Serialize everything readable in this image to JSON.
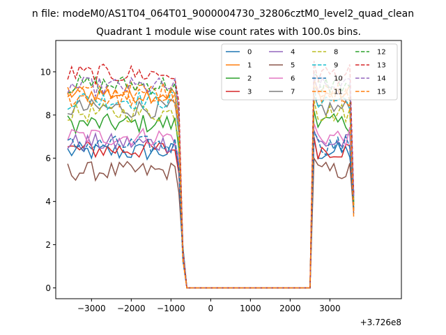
{
  "chart_data": {
    "type": "line",
    "suptitle": "n file: modeM0/AS1T04_064T01_9000004730_32806cztM0_level2_quad_clean",
    "title": "Quadrant 1 module wise count rates with 100.0s bins.",
    "xlabel": "",
    "ylabel": "",
    "offset_label": "+3.726e8",
    "xlim": [
      -3900,
      4800
    ],
    "ylim": [
      -0.5,
      11.45
    ],
    "x_ticks": [
      {
        "value": -3000,
        "label": "−3000"
      },
      {
        "value": -2000,
        "label": "−2000"
      },
      {
        "value": -1000,
        "label": "−1000"
      },
      {
        "value": 0,
        "label": "0"
      },
      {
        "value": 1000,
        "label": "1000"
      },
      {
        "value": 2000,
        "label": "2000"
      },
      {
        "value": 3000,
        "label": "3000"
      }
    ],
    "y_ticks": [
      {
        "value": 0,
        "label": "0"
      },
      {
        "value": 2,
        "label": "2"
      },
      {
        "value": 4,
        "label": "4"
      },
      {
        "value": 6,
        "label": "6"
      },
      {
        "value": 8,
        "label": "8"
      },
      {
        "value": 10,
        "label": "10"
      }
    ],
    "legend_position": "top-right",
    "grid": false,
    "series": [
      {
        "name": "0",
        "color": "#1f77b4",
        "dash": "solid",
        "base": 6.3
      },
      {
        "name": "1",
        "color": "#ff7f0e",
        "dash": "solid",
        "base": 9.0
      },
      {
        "name": "2",
        "color": "#2ca02c",
        "dash": "solid",
        "base": 7.6
      },
      {
        "name": "3",
        "color": "#d62728",
        "dash": "solid",
        "base": 6.4
      },
      {
        "name": "4",
        "color": "#9467bd",
        "dash": "solid",
        "base": 6.7
      },
      {
        "name": "5",
        "color": "#8c564b",
        "dash": "solid",
        "base": 5.4
      },
      {
        "name": "6",
        "color": "#e377c2",
        "dash": "solid",
        "base": 7.0
      },
      {
        "name": "7",
        "color": "#7f7f7f",
        "dash": "solid",
        "base": 8.3
      },
      {
        "name": "8",
        "color": "#bcbd22",
        "dash": "dashed",
        "base": 8.1
      },
      {
        "name": "9",
        "color": "#17becf",
        "dash": "dashed",
        "base": 8.7
      },
      {
        "name": "10",
        "color": "#1f77b4",
        "dash": "dashed",
        "base": 6.6
      },
      {
        "name": "11",
        "color": "#ff7f0e",
        "dash": "dashed",
        "base": 9.1
      },
      {
        "name": "12",
        "color": "#2ca02c",
        "dash": "dashed",
        "base": 9.4
      },
      {
        "name": "13",
        "color": "#d62728",
        "dash": "dashed",
        "base": 9.9
      },
      {
        "name": "14",
        "color": "#9467bd",
        "dash": "dashed",
        "base": 9.3
      },
      {
        "name": "15",
        "color": "#ff7f0e",
        "dash": "dashed",
        "base": 8.8
      }
    ]
  }
}
